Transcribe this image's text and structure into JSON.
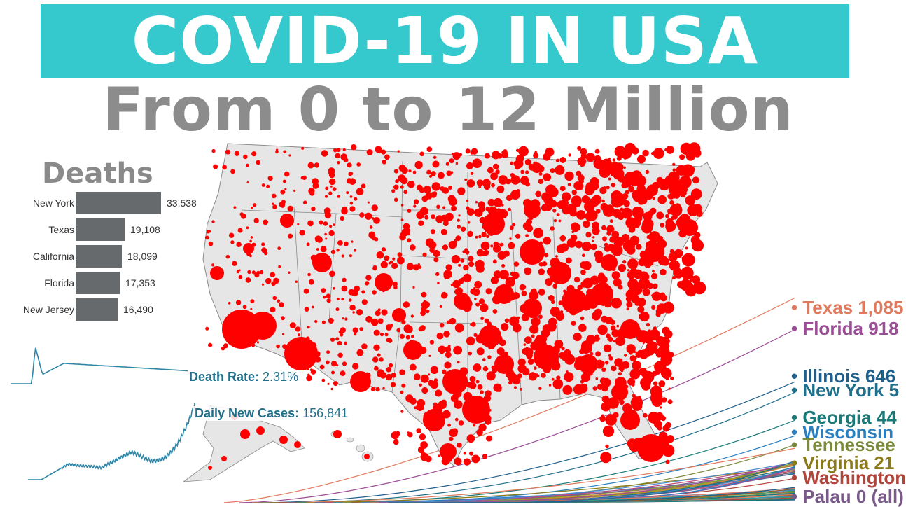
{
  "title": "COVID-19 IN USA",
  "subtitle": "From 0 to 12 Million",
  "deaths_heading": "Deaths",
  "colors": {
    "banner": "#35c8cc",
    "subtitle": "#8c8c8c",
    "bar": "#666a6c",
    "map_land": "#e6e6e6",
    "map_border": "#8a8a8a",
    "bubble": "#ff0000",
    "teal_line": "#2d86a8"
  },
  "chart_data": [
    {
      "type": "bar",
      "title": "Deaths",
      "categories": [
        "New York",
        "Texas",
        "California",
        "Florida",
        "New Jersey"
      ],
      "values": [
        33538,
        19108,
        18099,
        17353,
        16490
      ],
      "value_labels": [
        "33,538",
        "19,108",
        "18,099",
        "17,353",
        "16,490"
      ],
      "xlim": [
        0,
        33538
      ]
    },
    {
      "type": "line",
      "title": "",
      "series_color": "#2d86a8",
      "annotation_label": "Death Rate:",
      "annotation_value": "2.31%",
      "points": [
        0.0,
        0.0,
        0.05,
        0.9,
        0.55,
        0.3,
        0.42,
        0.5,
        0.58,
        0.6,
        0.58,
        0.55,
        0.52,
        0.5,
        0.48,
        0.46,
        0.44,
        0.43,
        0.42,
        0.41,
        0.4
      ]
    },
    {
      "type": "line",
      "title": "",
      "series_color": "#2d86a8",
      "annotation_label": "Daily New Cases:",
      "annotation_value": "156,841",
      "last_value": 156841
    },
    {
      "type": "line",
      "title": "",
      "labels": [
        {
          "text": "Texas 1,085",
          "color": "#e07a5f"
        },
        {
          "text": "Florida 918",
          "color": "#9b4d96"
        },
        {
          "text": "Illinois 646",
          "color": "#1f5f8b"
        },
        {
          "text": "New York 5",
          "color": "#1f6f8b"
        },
        {
          "text": "Georgia 44",
          "color": "#1a7a7a"
        },
        {
          "text": "Wisconsin",
          "color": "#2a7fc0"
        },
        {
          "text": "Tennessee",
          "color": "#7a8a3a"
        },
        {
          "text": "Virginia 21",
          "color": "#8a7a1a"
        },
        {
          "text": "Washington",
          "color": "#b0453a"
        },
        {
          "text": "Palau 0 (all)",
          "color": "#7a5a8a"
        }
      ]
    }
  ]
}
